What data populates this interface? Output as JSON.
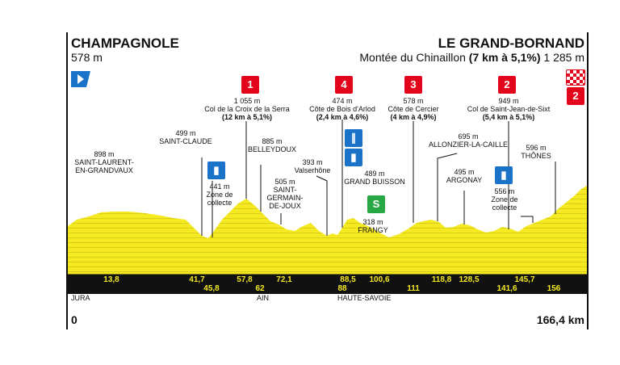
{
  "start": {
    "name": "CHAMPAGNOLE",
    "altitude": "578 m"
  },
  "finish": {
    "name": "LE GRAND-BORNAND",
    "subtitle_prefix": "Montée du Chinaillon",
    "subtitle_bold": "(7 km à 5,1%)",
    "subtitle_alt": "1 285 m"
  },
  "distance": {
    "start": "0",
    "end": "166,4 km"
  },
  "regions": [
    "JURA",
    "AIN",
    "HAUTE-SAVOIE"
  ],
  "km_markers_top": [
    "13,8",
    "41,7",
    "57,8",
    "72,1",
    "88,5",
    "100,6",
    "118,8",
    "128,5",
    "145,7"
  ],
  "km_markers_bottom": [
    "45,8",
    "62",
    "88",
    "111",
    "141,6",
    "156"
  ],
  "climbs": [
    {
      "cat": "1",
      "line1": "1 055 m",
      "line2": "Col de la Croix de la Serra",
      "line3": "(12 km à 5,1%)"
    },
    {
      "cat": "4",
      "line1": "474 m",
      "line2": "Côte de Bois d'Arlod",
      "line3": "(2,4 km à 4,6%)"
    },
    {
      "cat": "3",
      "line1": "578 m",
      "line2": "Côte de Cercier",
      "line3": "(4 km à 4,9%)"
    },
    {
      "cat": "2",
      "line1": "949 m",
      "line2": "Col de Saint-Jean-de-Sixt",
      "line3": "(5,4 km à 5,1%)"
    }
  ],
  "finish_cat": "2",
  "places": [
    {
      "alt": "898 m",
      "name1": "SAINT-LAURENT-",
      "name2": "EN-GRANDVAUX"
    },
    {
      "alt": "499 m",
      "name1": "SAINT-CLAUDE",
      "name2": ""
    },
    {
      "alt": "441 m",
      "name1": "Zone de",
      "name2": "collecte"
    },
    {
      "alt": "885 m",
      "name1": "BELLEYDOUX",
      "name2": ""
    },
    {
      "alt": "505 m",
      "name1": "SAINT-",
      "name2": "GERMAIN-",
      "name3": "DE-JOUX"
    },
    {
      "alt": "393 m",
      "name1": "Valserhône",
      "name2": ""
    },
    {
      "alt": "489 m",
      "name1": "GRAND BUISSON",
      "name2": ""
    },
    {
      "alt": "318 m",
      "name1": "FRANGY",
      "name2": ""
    },
    {
      "alt": "695 m",
      "name1": "ALLONZIER-LA-CAILLE",
      "name2": ""
    },
    {
      "alt": "495 m",
      "name1": "ARGONAY",
      "name2": ""
    },
    {
      "alt": "556 m",
      "name1": "Zone de",
      "name2": "collecte"
    },
    {
      "alt": "596 m",
      "name1": "THÔNES",
      "name2": ""
    }
  ],
  "icons": {
    "start": "start-flag-icon",
    "feed_zone": "bottle-icon",
    "food": "fork-knife-icon",
    "sprint": "sprint-icon",
    "finish": "checkered-flag-icon"
  },
  "colors": {
    "profile": "#f5ea21",
    "profile_stripe": "#d9cf1a",
    "cat_red": "#e3051b",
    "feed_blue": "#1a73c8",
    "sprint_green": "#28a745",
    "band": "#111111"
  }
}
